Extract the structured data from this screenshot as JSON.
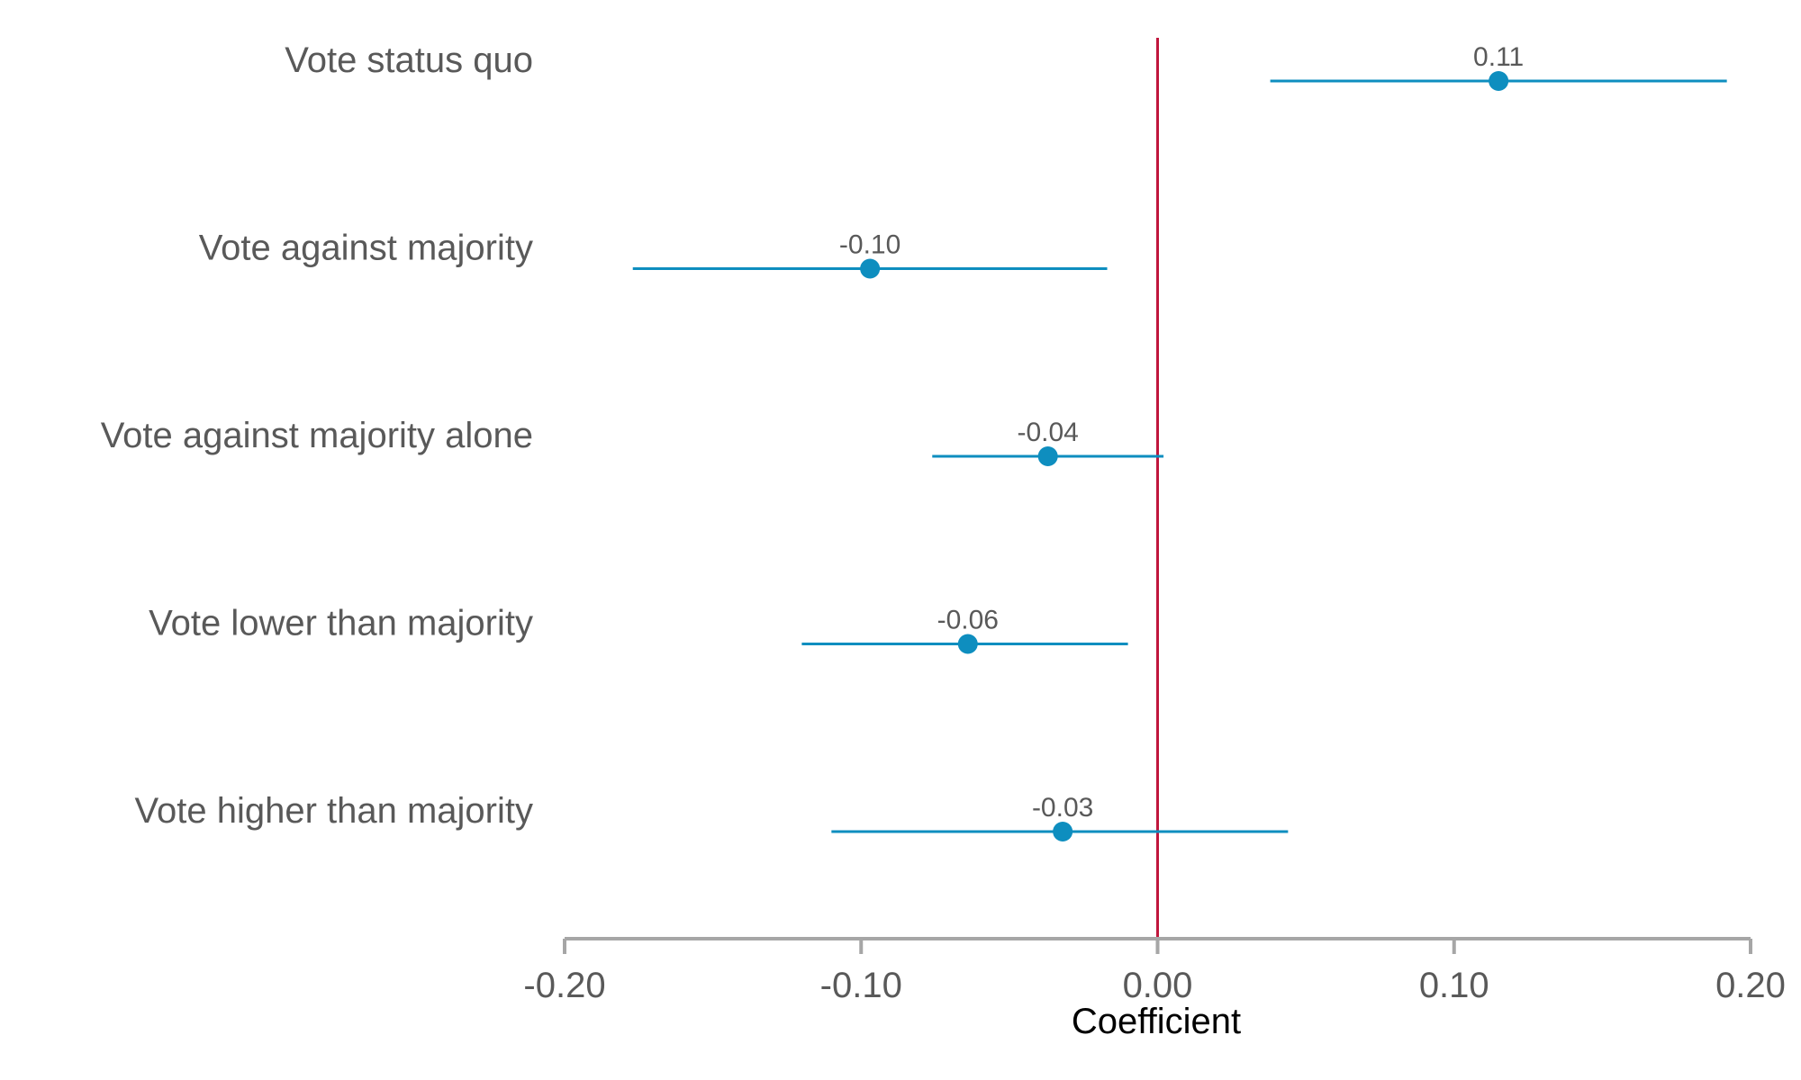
{
  "chart_data": {
    "type": "scatter",
    "title": "",
    "xlabel": "Coefficient",
    "ylabel": "",
    "xlim": [
      -0.2,
      0.2
    ],
    "xticks": [
      -0.2,
      -0.1,
      0.0,
      0.1,
      0.2
    ],
    "xtick_labels": [
      "-0.20",
      "-0.10",
      "0.00",
      "0.10",
      "0.20"
    ],
    "reference_line_x": 0.0,
    "grid": false,
    "colors": {
      "points": "#0e8ebf",
      "reference_line": "#c0163c",
      "axis": "#a6a6a6"
    },
    "categories": [
      "Vote status quo",
      "Vote against majority",
      "Vote against majority alone",
      "Vote lower than majority",
      "Vote higher than majority"
    ],
    "estimates": [
      0.115,
      -0.097,
      -0.037,
      -0.064,
      -0.032
    ],
    "ci_low": [
      0.038,
      -0.177,
      -0.076,
      -0.12,
      -0.11
    ],
    "ci_high": [
      0.192,
      -0.017,
      0.002,
      -0.01,
      0.044
    ],
    "value_labels": [
      "0.11",
      "-0.10",
      "-0.04",
      "-0.06",
      "-0.03"
    ]
  }
}
